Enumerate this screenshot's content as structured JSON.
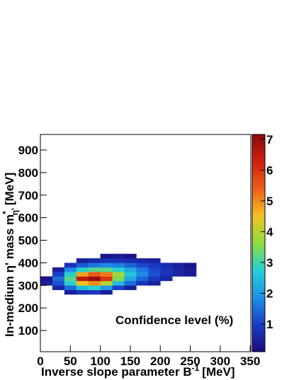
{
  "chart_data": {
    "type": "heatmap",
    "annotation": "Confidence level (%)",
    "xlabel": "Inverse slope parameter   B",
    "xlabel_sup": "-1",
    "xlabel_unit": "[MeV]",
    "ylabel": "In-medium η' mass   m",
    "ylabel_sup": "*",
    "ylabel_sub": "η'",
    "ylabel_unit": "[MeV]",
    "x_bins": [
      0,
      20,
      40,
      60,
      80,
      100,
      120,
      140,
      160,
      180,
      200,
      220,
      240,
      260
    ],
    "y_bins": [
      260,
      280,
      300,
      320,
      340,
      360,
      380,
      400,
      420,
      440
    ],
    "z": [
      [
        null,
        null,
        0.5,
        0.8,
        0.9,
        0.5,
        null,
        null,
        null,
        null,
        null,
        null,
        null
      ],
      [
        null,
        0.6,
        1.5,
        2.5,
        2.8,
        2.0,
        1.0,
        0.5,
        null,
        null,
        null,
        null,
        null
      ],
      [
        0.5,
        1.2,
        2.8,
        4.5,
        5.0,
        4.0,
        2.5,
        1.5,
        0.8,
        0.5,
        null,
        null,
        null
      ],
      [
        0.3,
        1.5,
        3.2,
        6.5,
        7.0,
        6.0,
        3.5,
        2.2,
        1.4,
        0.9,
        0.6,
        null,
        null
      ],
      [
        null,
        1.0,
        2.8,
        4.8,
        5.5,
        5.2,
        3.8,
        2.6,
        1.8,
        1.2,
        0.8,
        0.6,
        0.4
      ],
      [
        null,
        0.5,
        1.8,
        2.8,
        3.2,
        3.2,
        2.8,
        2.2,
        1.6,
        1.1,
        0.8,
        0.6,
        0.4
      ],
      [
        null,
        null,
        0.8,
        1.3,
        1.6,
        1.8,
        1.7,
        1.4,
        1.1,
        0.9,
        0.7,
        0.5,
        0.3
      ],
      [
        null,
        null,
        null,
        0.5,
        0.7,
        0.8,
        0.8,
        0.7,
        0.6,
        0.5,
        null,
        null,
        null
      ],
      [
        null,
        null,
        null,
        null,
        null,
        0.3,
        0.4,
        0.3,
        null,
        null,
        null,
        null,
        null
      ]
    ],
    "xlim": [
      0,
      351
    ],
    "xticks": [
      0,
      50,
      100,
      150,
      200,
      250,
      300,
      350
    ],
    "ylim": [
      6,
      969
    ],
    "yticks": [
      100,
      200,
      300,
      400,
      500,
      600,
      700,
      800,
      900
    ],
    "zlim": [
      0.1,
      7.16
    ],
    "zticks": [
      1,
      2,
      3,
      4,
      5,
      6,
      7
    ],
    "colormap": [
      "#180a78",
      "#1a3cc8",
      "#1e90e8",
      "#22d0d8",
      "#8edc40",
      "#f0c420",
      "#f06018",
      "#d02010",
      "#8c0c0c"
    ]
  }
}
